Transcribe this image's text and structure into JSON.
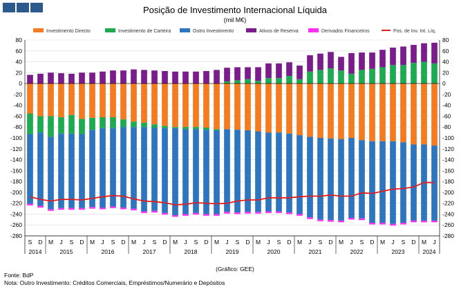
{
  "header": {
    "logo": "BdP"
  },
  "chart_data": {
    "type": "bar",
    "title": "Posição de Investimento Internacional Líquida",
    "subtitle": "(mil M€)",
    "ylim": [
      -280,
      80
    ],
    "yticks": [
      80,
      60,
      40,
      20,
      0,
      -20,
      -40,
      -60,
      -80,
      -100,
      -120,
      -140,
      -160,
      -180,
      -200,
      -220,
      -240,
      -260,
      -280
    ],
    "categories": [
      "S 2014",
      "D 2014",
      "M 2015",
      "J 2015",
      "S 2015",
      "D 2015",
      "M 2016",
      "J 2016",
      "S 2016",
      "D 2016",
      "M 2017",
      "J 2017",
      "S 2017",
      "D 2017",
      "M 2018",
      "J 2018",
      "S 2018",
      "D 2018",
      "M 2019",
      "J 2019",
      "S 2019",
      "D 2019",
      "M 2020",
      "J 2020",
      "S 2020",
      "D 2020",
      "M 2021",
      "J 2021",
      "S 2021",
      "D 2021",
      "M 2022",
      "J 2022",
      "S 2022",
      "D 2022",
      "M 2023",
      "J 2023",
      "S 2023",
      "D 2023",
      "M 2024",
      "J 2024"
    ],
    "quarter_labels": [
      "S",
      "D",
      "M",
      "J",
      "S",
      "D",
      "M",
      "J",
      "S",
      "D",
      "M",
      "J",
      "S",
      "D",
      "M",
      "J",
      "S",
      "D",
      "M",
      "J",
      "S",
      "D",
      "M",
      "J",
      "S",
      "D",
      "M",
      "J",
      "S",
      "D",
      "M",
      "J",
      "S",
      "D",
      "M",
      "J",
      "S",
      "D",
      "M",
      "J"
    ],
    "years": [
      {
        "label": "2014",
        "start": 0,
        "end": 1
      },
      {
        "label": "2015",
        "start": 2,
        "end": 5
      },
      {
        "label": "2016",
        "start": 6,
        "end": 9
      },
      {
        "label": "2017",
        "start": 10,
        "end": 13
      },
      {
        "label": "2018",
        "start": 14,
        "end": 17
      },
      {
        "label": "2019",
        "start": 18,
        "end": 21
      },
      {
        "label": "2020",
        "start": 22,
        "end": 25
      },
      {
        "label": "2021",
        "start": 26,
        "end": 29
      },
      {
        "label": "2022",
        "start": 30,
        "end": 33
      },
      {
        "label": "2023",
        "start": 34,
        "end": 37
      },
      {
        "label": "2024",
        "start": 38,
        "end": 39
      }
    ],
    "series": [
      {
        "name": "Investimento Directo",
        "color": "#f47b20",
        "kind": "bar",
        "values": [
          -55,
          -60,
          -60,
          -62,
          -58,
          -65,
          -63,
          -62,
          -62,
          -66,
          -70,
          -72,
          -75,
          -78,
          -80,
          -80,
          -80,
          -81,
          -84,
          -84,
          -85,
          -86,
          -88,
          -90,
          -90,
          -92,
          -95,
          -98,
          -100,
          -101,
          -102,
          -100,
          -104,
          -106,
          -106,
          -106,
          -108,
          -112,
          -112,
          -114
        ]
      },
      {
        "name": "Investimento de Carteira",
        "color": "#1daa50",
        "kind": "bar",
        "values": [
          -38,
          -30,
          -38,
          -30,
          -34,
          -28,
          -22,
          -20,
          -20,
          -14,
          -10,
          -8,
          -6,
          -4,
          -2,
          -4,
          -4,
          -4,
          -2,
          4,
          6,
          8,
          5,
          10,
          10,
          14,
          8,
          22,
          25,
          28,
          24,
          18,
          25,
          27,
          30,
          34,
          34,
          38,
          40,
          37
        ]
      },
      {
        "name": "Outro Investimento",
        "color": "#2e75c0",
        "kind": "bar",
        "values": [
          -128,
          -135,
          -133,
          -137,
          -137,
          -136,
          -142,
          -146,
          -144,
          -148,
          -150,
          -155,
          -153,
          -156,
          -160,
          -156,
          -154,
          -155,
          -154,
          -152,
          -152,
          -150,
          -148,
          -145,
          -145,
          -145,
          -145,
          -148,
          -150,
          -150,
          -150,
          -147,
          -144,
          -150,
          -150,
          -152,
          -148,
          -140,
          -140,
          -138
        ]
      },
      {
        "name": "Ativos de Reserva",
        "color": "#7b1c8c",
        "kind": "bar",
        "values": [
          16,
          18,
          20,
          19,
          18,
          20,
          20,
          22,
          24,
          24,
          26,
          25,
          24,
          23,
          22,
          22,
          22,
          23,
          25,
          25,
          24,
          22,
          25,
          27,
          27,
          25,
          25,
          30,
          30,
          30,
          25,
          38,
          32,
          30,
          32,
          32,
          34,
          33,
          34,
          38
        ]
      },
      {
        "name": "Derivados Financeiros",
        "color": "#ff2ef5",
        "kind": "bar",
        "values": [
          -3,
          -3,
          -3,
          -3,
          -3,
          -3,
          -3,
          -3,
          -3,
          -3,
          -3,
          -3,
          -3,
          -3,
          -3,
          -3,
          -3,
          -3,
          -3,
          -3,
          -3,
          -3,
          -3,
          -3,
          -3,
          -3,
          -3,
          -3,
          -3,
          -3,
          -3,
          -3,
          -3,
          -3,
          -3,
          -3,
          -3,
          -3,
          -3,
          -3
        ]
      },
      {
        "name": "Pos. de Inv. Int. Líq.",
        "color": "#e31c1c",
        "kind": "line",
        "values": [
          -208,
          -213,
          -216,
          -213,
          -213,
          -214,
          -211,
          -208,
          -206,
          -207,
          -212,
          -216,
          -217,
          -219,
          -223,
          -222,
          -219,
          -220,
          -221,
          -220,
          -216,
          -214,
          -214,
          -210,
          -210,
          -210,
          -208,
          -207,
          -207,
          -205,
          -207,
          -207,
          -201,
          -202,
          -198,
          -194,
          -193,
          -190,
          -182,
          -182
        ]
      }
    ]
  },
  "credit": "(Gráfico: GEE)",
  "footnotes": {
    "source": "Fonte: BdP",
    "note": "Nota: Outro Investimento: Créditos Comerciais, Empréstimos/Numerário e Depósitos"
  }
}
